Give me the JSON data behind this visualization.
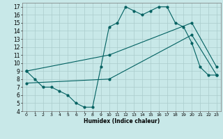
{
  "xlabel": "Humidex (Indice chaleur)",
  "xlim": [
    -0.5,
    23.5
  ],
  "ylim": [
    4,
    17.5
  ],
  "xtick_labels": [
    "0",
    "1",
    "2",
    "3",
    "4",
    "5",
    "6",
    "7",
    "8",
    "9",
    "10",
    "11",
    "12",
    "13",
    "14",
    "15",
    "16",
    "17",
    "18",
    "19",
    "20",
    "21",
    "22",
    "23"
  ],
  "xtick_vals": [
    0,
    1,
    2,
    3,
    4,
    5,
    6,
    7,
    8,
    9,
    10,
    11,
    12,
    13,
    14,
    15,
    16,
    17,
    18,
    19,
    20,
    21,
    22,
    23
  ],
  "ytick_vals": [
    4,
    5,
    6,
    7,
    8,
    9,
    10,
    11,
    12,
    13,
    14,
    15,
    16,
    17
  ],
  "bg_color": "#c8e8e8",
  "grid_color": "#aacccc",
  "line_color": "#006060",
  "line1_x": [
    0,
    1,
    2,
    3,
    4,
    5,
    6,
    7,
    8,
    9,
    10,
    11,
    12,
    13,
    14,
    15,
    16,
    17,
    18,
    19,
    20,
    21,
    22,
    23
  ],
  "line1_y": [
    9,
    8,
    7,
    7,
    6.5,
    6,
    5,
    4.5,
    4.5,
    9.5,
    14.5,
    15,
    17,
    16.5,
    16,
    16.5,
    17,
    17,
    15,
    14.5,
    12.5,
    9.5,
    8.5,
    8.5
  ],
  "line2_x": [
    0,
    10,
    20,
    23
  ],
  "line2_y": [
    9,
    11,
    15,
    9.5
  ],
  "line3_x": [
    0,
    10,
    20,
    23
  ],
  "line3_y": [
    7.5,
    8,
    13.5,
    8.5
  ]
}
